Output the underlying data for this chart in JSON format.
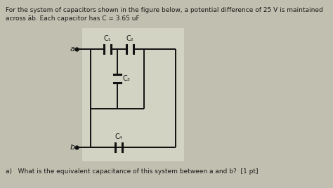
{
  "title_line1": "For the system of capacitors shown in the figure below, a potential difference of 25 V is maintained",
  "title_line2": "across āb. Each capacitor has C = 3.65 uF",
  "question": "a)   What is the equivalent capacitance of this system between a and b?  [1 pt]",
  "bg_color": "#c0bfb0",
  "circuit_bg": "#dcdccc",
  "labels": [
    "C₁",
    "C₂",
    "C₃",
    "C₄"
  ],
  "node_a": "a",
  "node_b": "b",
  "text_color": "#1a1a1a",
  "font_size_title": 6.5,
  "font_size_label": 7.0,
  "font_size_question": 6.5
}
